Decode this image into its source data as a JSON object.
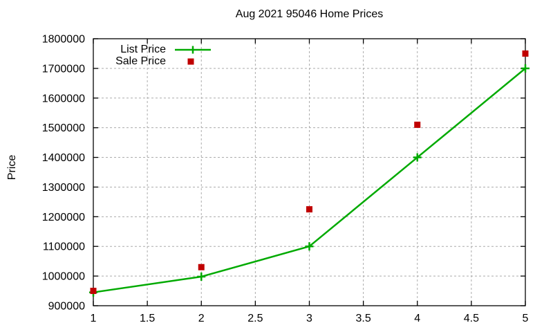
{
  "title": "Aug 2021 95046 Home Prices",
  "ylabel": "Price",
  "colors": {
    "list_price": "#00aa00",
    "sale_price": "#c00000",
    "grid": "#ababab",
    "axis": "#000000",
    "text": "#000000",
    "background": "#ffffff"
  },
  "legend": {
    "items": [
      {
        "label": "List Price",
        "marker": "line-with-plus",
        "color": "#00aa00"
      },
      {
        "label": "Sale Price",
        "marker": "filled-square",
        "color": "#c00000"
      }
    ]
  },
  "chart_data": {
    "type": "line",
    "title": "Aug 2021 95046 Home Prices",
    "xlabel": "",
    "ylabel": "Price",
    "x": [
      1,
      2,
      3,
      4,
      5
    ],
    "series": [
      {
        "name": "List Price",
        "style": "line-with-plus-markers",
        "color": "#00aa00",
        "values": [
          945000,
          998000,
          1100000,
          1400000,
          1700000
        ]
      },
      {
        "name": "Sale Price",
        "style": "square-points",
        "color": "#c00000",
        "values": [
          950000,
          1030000,
          1225000,
          1510000,
          1750000
        ]
      }
    ],
    "xlim": [
      1,
      5
    ],
    "ylim": [
      900000,
      1800000
    ],
    "xticks": [
      1,
      1.5,
      2,
      2.5,
      3,
      3.5,
      4,
      4.5,
      5
    ],
    "yticks": [
      900000,
      1000000,
      1100000,
      1200000,
      1300000,
      1400000,
      1500000,
      1600000,
      1700000,
      1800000
    ],
    "grid": true,
    "legend_position": "top-left-inside"
  }
}
